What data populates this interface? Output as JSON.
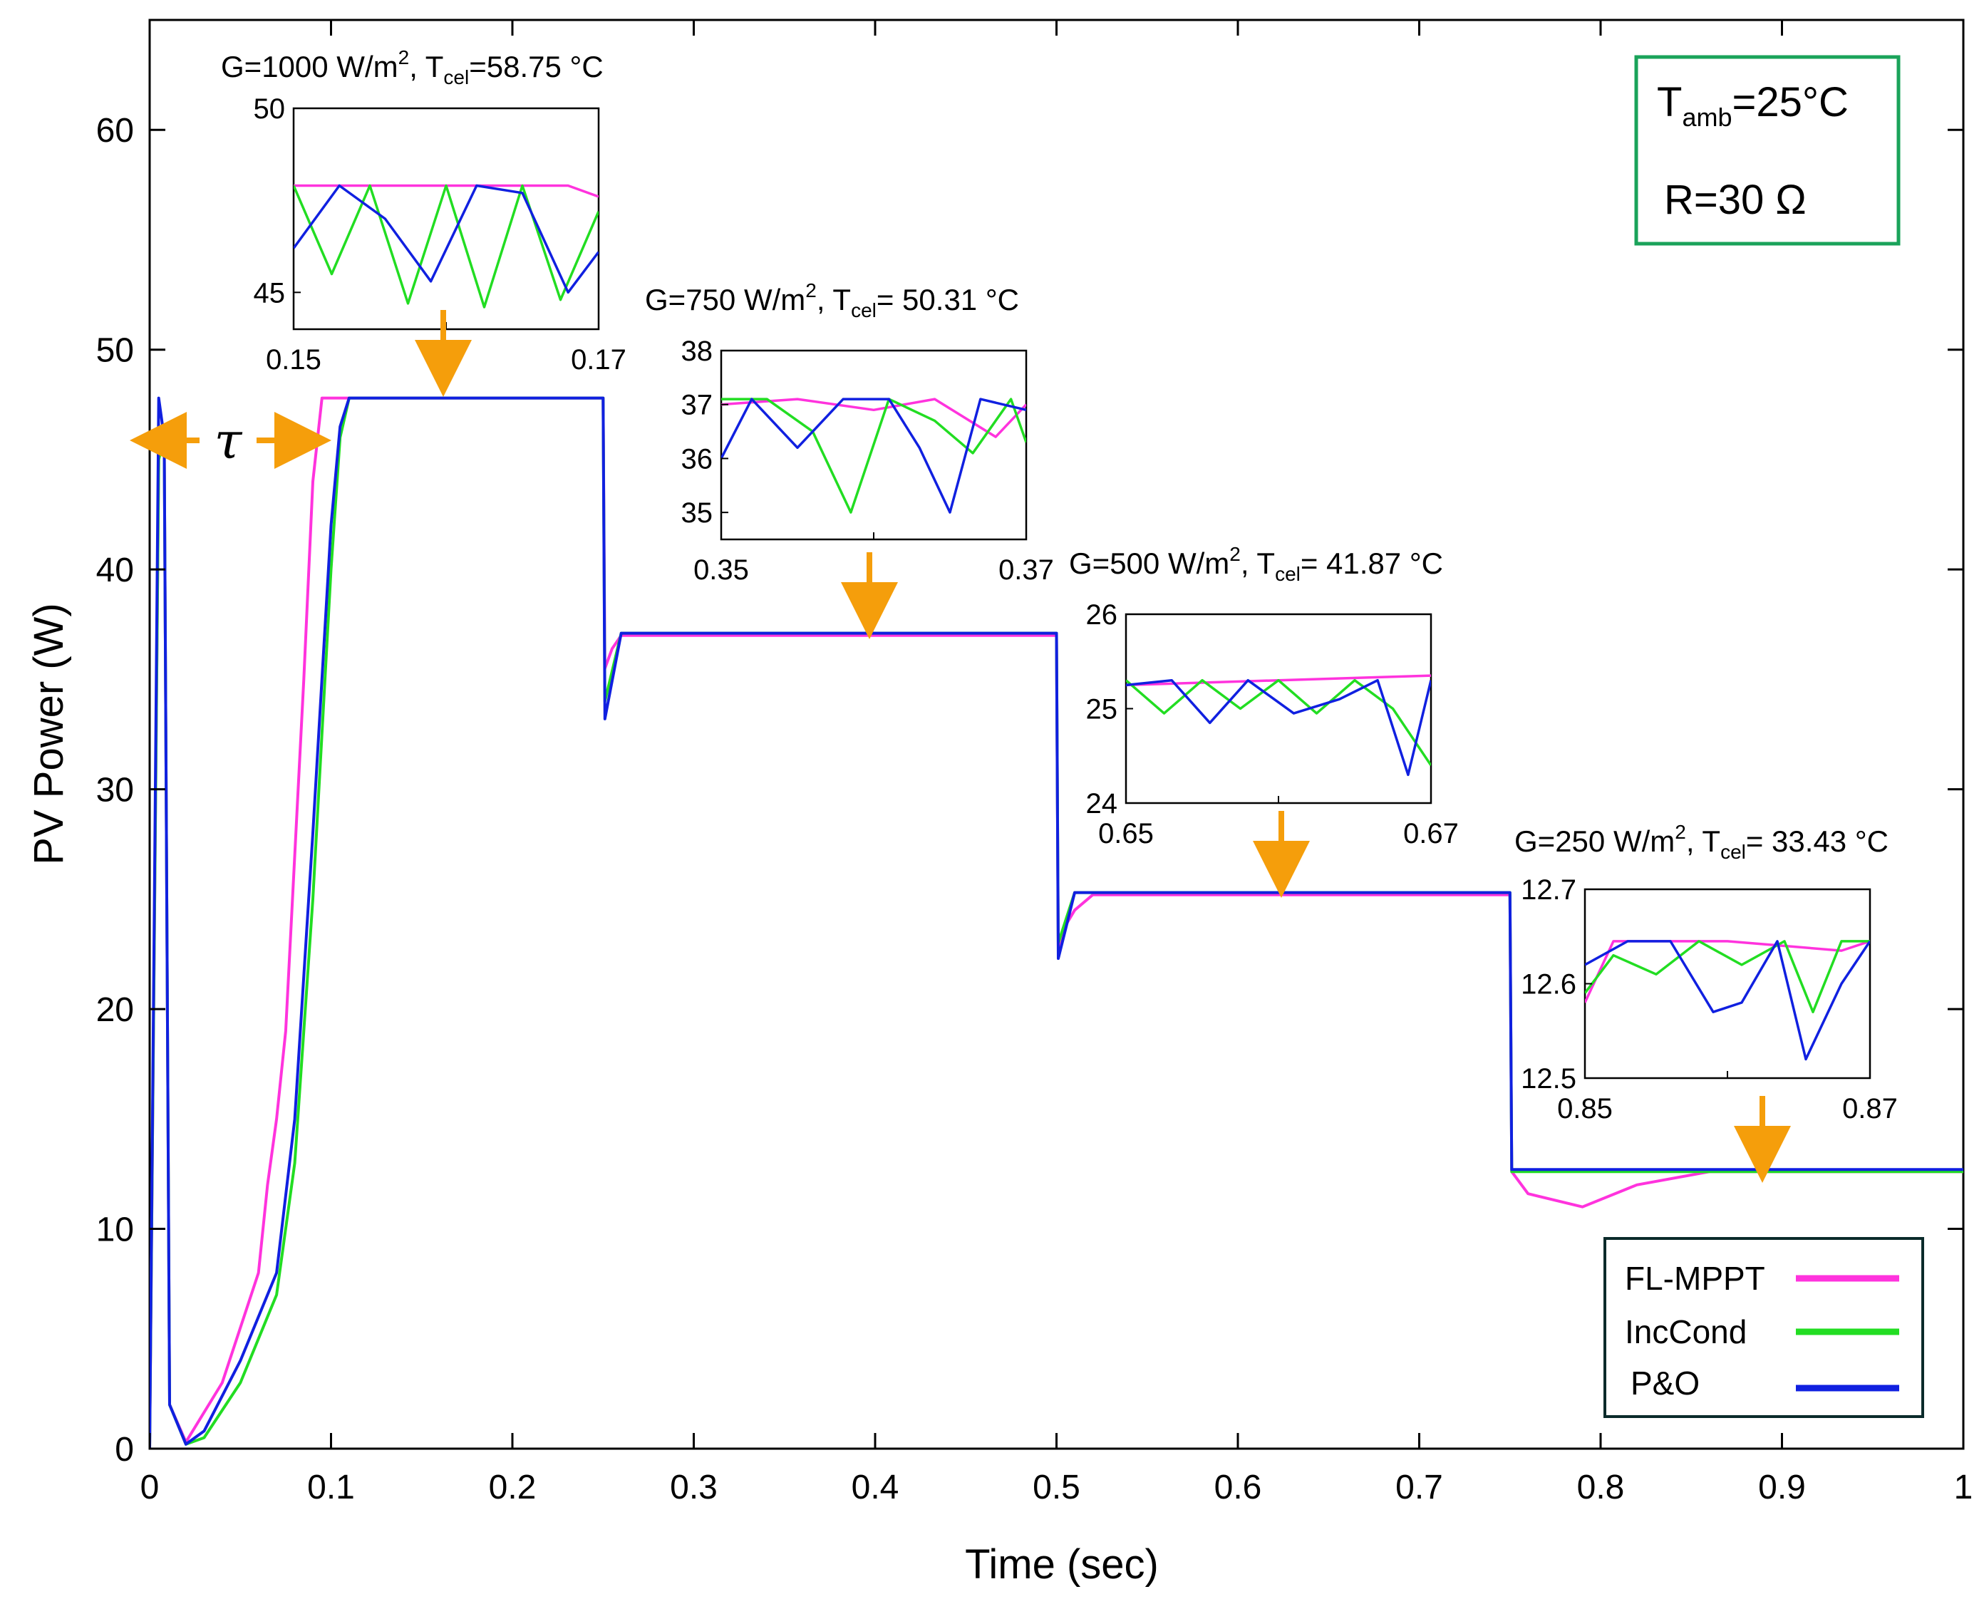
{
  "chart_data": {
    "type": "line",
    "title": "",
    "xlabel": "Time (sec)",
    "ylabel": "PV Power (W)",
    "xlim": [
      0,
      1
    ],
    "ylim": [
      0,
      65
    ],
    "x_ticks": [
      0,
      0.1,
      0.2,
      0.3,
      0.4,
      0.5,
      0.6,
      0.7,
      0.8,
      0.9,
      1
    ],
    "y_ticks": [
      0,
      10,
      20,
      30,
      40,
      50,
      60
    ],
    "x_tick_labels": [
      "0",
      "0.1",
      "0.2",
      "0.3",
      "0.4",
      "0.5",
      "0.6",
      "0.7",
      "0.8",
      "0.9",
      "1"
    ],
    "y_tick_labels": [
      "0",
      "10",
      "20",
      "30",
      "40",
      "50",
      "60"
    ],
    "grid": false,
    "legend": {
      "placement": "bottom-right",
      "entries": [
        "FL-MPPT",
        "IncCond",
        "P&O"
      ]
    },
    "series": [
      {
        "name": "FL-MPPT",
        "color": "#ff33dd",
        "x": [
          0,
          0.005,
          0.008,
          0.011,
          0.02,
          0.04,
          0.06,
          0.065,
          0.07,
          0.075,
          0.08,
          0.085,
          0.09,
          0.095,
          0.25,
          0.251,
          0.255,
          0.26,
          0.5,
          0.501,
          0.505,
          0.51,
          0.52,
          0.75,
          0.751,
          0.76,
          0.79,
          0.82,
          0.86,
          1.0
        ],
        "values": [
          0,
          45,
          46,
          2,
          0.3,
          3,
          8,
          12,
          15,
          19,
          27,
          35,
          44,
          47.8,
          47.8,
          35.5,
          36.4,
          37.0,
          37.0,
          22.8,
          23.8,
          24.5,
          25.2,
          25.2,
          12.6,
          11.6,
          11.0,
          12.0,
          12.6,
          12.6
        ]
      },
      {
        "name": "IncCond",
        "color": "#22dd22",
        "x": [
          0,
          0.005,
          0.008,
          0.011,
          0.02,
          0.03,
          0.05,
          0.07,
          0.08,
          0.09,
          0.1,
          0.105,
          0.11,
          0.25,
          0.251,
          0.26,
          0.5,
          0.501,
          0.51,
          0.75,
          0.751,
          1.0
        ],
        "values": [
          0,
          45,
          46,
          2,
          0.2,
          0.5,
          3,
          7,
          13,
          25,
          40,
          46,
          47.8,
          47.8,
          34,
          37.1,
          37.1,
          23,
          25.3,
          25.3,
          12.6,
          12.6
        ]
      },
      {
        "name": "P&O",
        "color": "#1020e0",
        "x": [
          0,
          0.005,
          0.008,
          0.011,
          0.02,
          0.03,
          0.05,
          0.07,
          0.08,
          0.09,
          0.1,
          0.105,
          0.11,
          0.25,
          0.251,
          0.26,
          0.5,
          0.501,
          0.51,
          0.75,
          0.751,
          1.0
        ],
        "values": [
          0,
          47.8,
          46,
          2,
          0.2,
          0.8,
          4,
          8,
          15,
          28,
          42,
          46.5,
          47.8,
          47.8,
          33.2,
          37.1,
          37.1,
          22.3,
          25.3,
          25.3,
          12.7,
          12.7
        ]
      }
    ],
    "tau_label": "τ",
    "info_box": [
      "Tamb=25°C",
      "R=30 Ω"
    ],
    "insets": [
      {
        "title": "G=1000 W/m², Tcel=58.75 °C",
        "xlim": [
          0.15,
          0.17
        ],
        "ylim": [
          44,
          50
        ],
        "x_tick_labels": [
          "0.15",
          "0.17"
        ],
        "y_ticks": [
          45,
          50
        ],
        "y_tick_labels": [
          "45",
          "50"
        ],
        "x_ticks": [
          0.15,
          0.17
        ],
        "series": [
          {
            "name": "FL-MPPT",
            "x": [
              0.15,
              0.168,
              0.17
            ],
            "values": [
              47.9,
              47.9,
              47.6
            ]
          },
          {
            "name": "IncCond",
            "x": [
              0.15,
              0.1525,
              0.155,
              0.1575,
              0.16,
              0.1625,
              0.165,
              0.1675,
              0.17
            ],
            "values": [
              47.9,
              45.5,
              47.9,
              44.7,
              47.9,
              44.6,
              47.9,
              44.8,
              47.2
            ]
          },
          {
            "name": "P&O",
            "x": [
              0.15,
              0.153,
              0.156,
              0.159,
              0.162,
              0.165,
              0.168,
              0.17
            ],
            "values": [
              46.2,
              47.9,
              47.0,
              45.3,
              47.9,
              47.7,
              45.0,
              46.1
            ]
          }
        ]
      },
      {
        "title": "G=750 W/m², Tcel= 50.31 °C",
        "xlim": [
          0.35,
          0.37
        ],
        "ylim": [
          34.5,
          38
        ],
        "x_tick_labels": [
          "0.35",
          "0.37"
        ],
        "y_ticks": [
          35,
          36,
          37,
          38
        ],
        "y_tick_labels": [
          "35",
          "36",
          "37",
          "38"
        ],
        "x_ticks": [
          0.35,
          0.37
        ],
        "series": [
          {
            "name": "FL-MPPT",
            "x": [
              0.35,
              0.355,
              0.36,
              0.364,
              0.368,
              0.37
            ],
            "values": [
              37.0,
              37.1,
              36.9,
              37.1,
              36.4,
              37.0
            ]
          },
          {
            "name": "IncCond",
            "x": [
              0.35,
              0.353,
              0.356,
              0.3585,
              0.361,
              0.364,
              0.3665,
              0.369,
              0.37
            ],
            "values": [
              37.1,
              37.1,
              36.5,
              35.0,
              37.1,
              36.7,
              36.1,
              37.1,
              36.3
            ]
          },
          {
            "name": "P&O",
            "x": [
              0.35,
              0.352,
              0.355,
              0.358,
              0.361,
              0.363,
              0.365,
              0.367,
              0.37
            ],
            "values": [
              36.0,
              37.1,
              36.2,
              37.1,
              37.1,
              36.2,
              35.0,
              37.1,
              36.9
            ]
          }
        ]
      },
      {
        "title": "G=500 W/m², Tcel= 41.87 °C",
        "xlim": [
          0.65,
          0.67
        ],
        "ylim": [
          24,
          26
        ],
        "x_tick_labels": [
          "0.65",
          "0.67"
        ],
        "y_ticks": [
          24,
          25,
          26
        ],
        "y_tick_labels": [
          "24",
          "25",
          "26"
        ],
        "x_ticks": [
          0.65,
          0.67
        ],
        "series": [
          {
            "name": "FL-MPPT",
            "x": [
              0.65,
              0.66,
              0.67
            ],
            "values": [
              25.25,
              25.3,
              25.35
            ]
          },
          {
            "name": "IncCond",
            "x": [
              0.65,
              0.6525,
              0.655,
              0.6575,
              0.66,
              0.6625,
              0.665,
              0.6675,
              0.67
            ],
            "values": [
              25.3,
              24.95,
              25.3,
              25.0,
              25.3,
              24.95,
              25.3,
              25.0,
              24.4
            ]
          },
          {
            "name": "P&O",
            "x": [
              0.65,
              0.653,
              0.6555,
              0.658,
              0.661,
              0.664,
              0.6665,
              0.6685,
              0.67
            ],
            "values": [
              25.25,
              25.3,
              24.85,
              25.3,
              24.95,
              25.1,
              25.3,
              24.3,
              25.3
            ]
          }
        ]
      },
      {
        "title": "G=250 W/m², Tcel= 33.43 °C",
        "xlim": [
          0.85,
          0.87
        ],
        "ylim": [
          12.5,
          12.7
        ],
        "x_tick_labels": [
          "0.85",
          "0.87"
        ],
        "y_ticks": [
          12.5,
          12.6,
          12.7
        ],
        "y_tick_labels": [
          "12.5",
          "12.6",
          "12.7"
        ],
        "x_ticks": [
          0.85,
          0.87
        ],
        "series": [
          {
            "name": "FL-MPPT",
            "x": [
              0.85,
              0.852,
              0.86,
              0.868,
              0.87
            ],
            "values": [
              12.58,
              12.645,
              12.645,
              12.635,
              12.645
            ]
          },
          {
            "name": "IncCond",
            "x": [
              0.85,
              0.852,
              0.855,
              0.858,
              0.861,
              0.864,
              0.866,
              0.868,
              0.87
            ],
            "values": [
              12.59,
              12.63,
              12.61,
              12.645,
              12.62,
              12.645,
              12.57,
              12.645,
              12.645
            ]
          },
          {
            "name": "P&O",
            "x": [
              0.85,
              0.853,
              0.856,
              0.859,
              0.861,
              0.8635,
              0.8655,
              0.868,
              0.87
            ],
            "values": [
              12.62,
              12.645,
              12.645,
              12.57,
              12.58,
              12.645,
              12.52,
              12.6,
              12.645
            ]
          }
        ]
      }
    ]
  }
}
